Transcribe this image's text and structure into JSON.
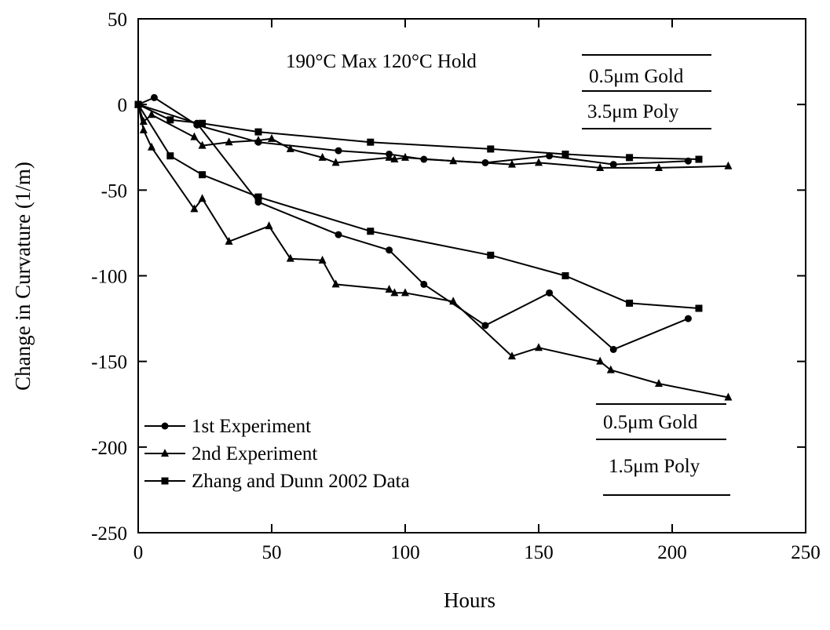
{
  "chart_data": {
    "type": "line",
    "title": "",
    "xlabel": "Hours",
    "ylabel": "Change in Curvature (1/m)",
    "xlim": [
      0,
      250
    ],
    "ylim": [
      -250,
      50
    ],
    "x_ticks": [
      "0",
      "50",
      "100",
      "150",
      "200",
      "250"
    ],
    "y_ticks": [
      "-250",
      "-200",
      "-150",
      "-100",
      "-50",
      "0",
      "50"
    ],
    "grid": false,
    "legend_position": "bottom-left",
    "annotations": {
      "conditions": "190°C Max 120°C Hold",
      "top_group": {
        "line1": "0.5μm Gold",
        "line2": "3.5μm Poly"
      },
      "bottom_group": {
        "line1": "0.5μm Gold",
        "line2": "1.5μm Poly"
      }
    },
    "series": [
      {
        "name": "1st Experiment",
        "marker": "circle",
        "group": "3.5μm Poly",
        "x": [
          0,
          6,
          22,
          45,
          75,
          94,
          107,
          130,
          154,
          178,
          206
        ],
        "y": [
          0,
          4,
          -12,
          -22,
          -27,
          -29,
          -32,
          -34,
          -30,
          -35,
          -33
        ]
      },
      {
        "name": "2nd Experiment",
        "marker": "triangle",
        "group": "3.5μm Poly",
        "x": [
          0,
          2,
          5,
          21,
          24,
          34,
          45,
          50,
          57,
          69,
          74,
          94,
          96,
          100,
          118,
          140,
          150,
          173,
          195,
          221
        ],
        "y": [
          0,
          -10,
          -6,
          -19,
          -24,
          -22,
          -21,
          -20,
          -26,
          -31,
          -34,
          -31,
          -32,
          -31,
          -33,
          -35,
          -34,
          -37,
          -37,
          -36
        ]
      },
      {
        "name": "Zhang and Dunn 2002 Data",
        "marker": "square",
        "group": "3.5μm Poly",
        "x": [
          0,
          12,
          24,
          45,
          87,
          132,
          160,
          184,
          210
        ],
        "y": [
          0,
          -9,
          -11,
          -16,
          -22,
          -26,
          -29,
          -31,
          -32
        ]
      },
      {
        "name": "1st Experiment",
        "marker": "circle",
        "group": "1.5μm Poly",
        "x": [
          0,
          22,
          45,
          75,
          94,
          107,
          130,
          154,
          178,
          206
        ],
        "y": [
          0,
          -11,
          -57,
          -76,
          -85,
          -105,
          -129,
          -110,
          -143,
          -125
        ]
      },
      {
        "name": "2nd Experiment",
        "marker": "triangle",
        "group": "1.5μm Poly",
        "x": [
          0,
          2,
          5,
          21,
          24,
          34,
          49,
          57,
          69,
          74,
          94,
          96,
          100,
          118,
          140,
          150,
          173,
          177,
          195,
          221
        ],
        "y": [
          0,
          -15,
          -25,
          -61,
          -55,
          -80,
          -71,
          -90,
          -91,
          -105,
          -108,
          -110,
          -110,
          -115,
          -147,
          -142,
          -150,
          -155,
          -163,
          -171
        ]
      },
      {
        "name": "Zhang and Dunn 2002 Data",
        "marker": "square",
        "group": "1.5μm Poly",
        "x": [
          0,
          12,
          24,
          45,
          87,
          132,
          160,
          184,
          210
        ],
        "y": [
          0,
          -30,
          -41,
          -54,
          -74,
          -88,
          -100,
          -116,
          -119
        ]
      }
    ],
    "legend": [
      {
        "label": "1st Experiment",
        "marker": "circle"
      },
      {
        "label": "2nd Experiment",
        "marker": "triangle"
      },
      {
        "label": "Zhang and Dunn 2002 Data",
        "marker": "square"
      }
    ]
  }
}
